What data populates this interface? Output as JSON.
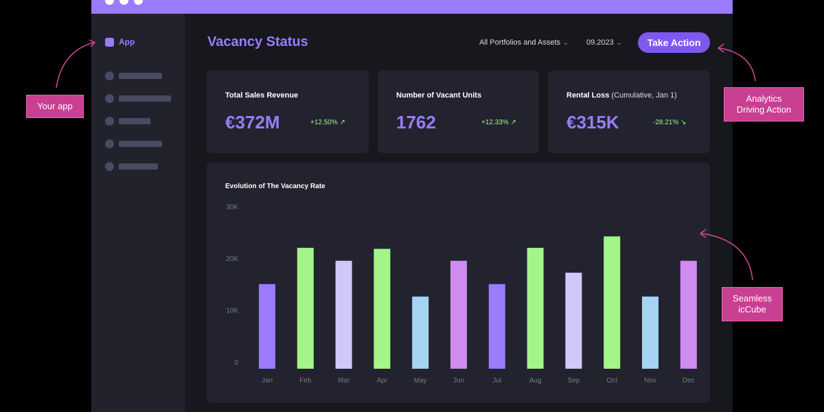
{
  "sidebar": {
    "app_label": "App"
  },
  "header": {
    "title": "Vacancy Status",
    "portfolio_filter": "All Portfolios and Assets",
    "date_filter": "09.2023",
    "action_button": "Take Action"
  },
  "kpis": [
    {
      "label": "Total Sales Revenue",
      "sublabel": "",
      "value": "€372M",
      "change": "+12.50%",
      "trend": "up"
    },
    {
      "label": "Number of Vacant Units",
      "sublabel": "",
      "value": "1762",
      "change": "+12.33%",
      "trend": "up"
    },
    {
      "label": "Rental Loss",
      "sublabel": "(Cumulative, Jan 1)",
      "value": "€315K",
      "change": "-28.21%",
      "trend": "down"
    }
  ],
  "annotations": {
    "your_app": "Your app",
    "analytics": "Analytics Driving Action",
    "seamless": "Seamless icCube"
  },
  "colors": {
    "accent": "#9b7cff",
    "titlebar": "#9a7bfd",
    "positive": "#a6f28a",
    "annotation": "#c93f92"
  },
  "chart_data": {
    "type": "bar",
    "title": "Evolution of The Vacancy Rate",
    "categories": [
      "Jan",
      "Feb",
      "Mar",
      "Apr",
      "May",
      "Jun",
      "Jul",
      "Aug",
      "Sep",
      "Oct",
      "Nov",
      "Dec"
    ],
    "values": [
      15000,
      22000,
      19500,
      21800,
      12600,
      19500,
      15000,
      22000,
      17200,
      24200,
      12600,
      19500
    ],
    "bar_colors": [
      "#9b7cff",
      "#a3f589",
      "#cfc8fb",
      "#a3f589",
      "#a6d3f2",
      "#cf8bef",
      "#9b7cff",
      "#a3f589",
      "#cfc8fb",
      "#a3f589",
      "#a6d3f2",
      "#cf8bef"
    ],
    "yticks": [
      "0",
      "10K",
      "20K",
      "30K"
    ],
    "ylim": [
      0,
      30000
    ],
    "grid": false
  }
}
